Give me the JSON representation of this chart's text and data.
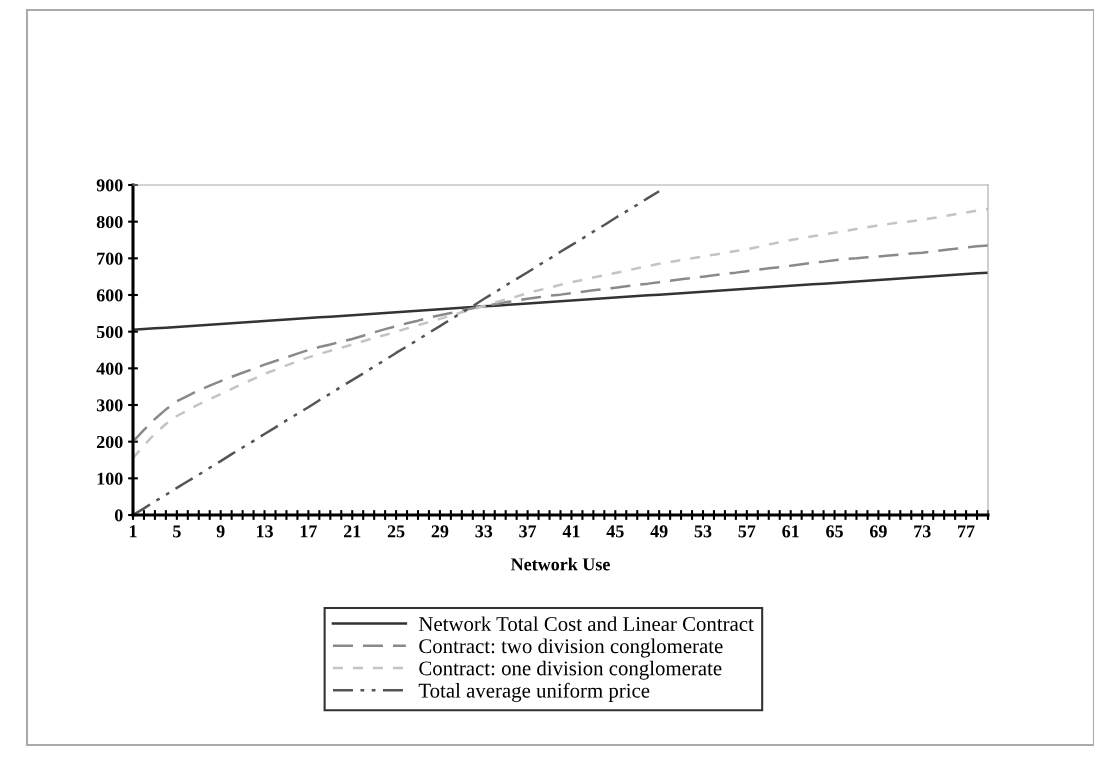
{
  "chart_data": {
    "type": "line",
    "xlabel": "Network Use",
    "categories": [
      "1",
      null,
      null,
      null,
      "5",
      null,
      null,
      null,
      "9",
      null,
      null,
      null,
      "13",
      null,
      null,
      null,
      "17",
      null,
      null,
      null,
      "21",
      null,
      null,
      null,
      "25",
      null,
      null,
      null,
      "29",
      null,
      null,
      null,
      "33",
      null,
      null,
      null,
      "37",
      null,
      null,
      null,
      "41",
      null,
      null,
      null,
      "45",
      null,
      null,
      null,
      "49",
      null,
      null,
      null,
      "53",
      null,
      null,
      null,
      "57",
      null,
      null,
      null,
      "61",
      null,
      null,
      null,
      "65",
      null,
      null,
      null,
      "69",
      null,
      null,
      null,
      "73",
      null,
      null,
      null,
      "77",
      null,
      null
    ],
    "ylim": [
      0,
      900
    ],
    "yticks": [
      0,
      100,
      200,
      300,
      400,
      500,
      600,
      700,
      800,
      900
    ],
    "grid": false,
    "legend": "bottom",
    "marker": "none",
    "series": [
      {
        "name": "Network Total Cost and Linear Contract",
        "color": "#333333",
        "line_style": "solid",
        "values": [
          505,
          507,
          509,
          511,
          513,
          515,
          517,
          519,
          521,
          523,
          525,
          527,
          529,
          531,
          533,
          535,
          537,
          539,
          541,
          543,
          545,
          547,
          549,
          551,
          553,
          555,
          557,
          559,
          561,
          563,
          565,
          567,
          569,
          571,
          573,
          575,
          577,
          579,
          581,
          583,
          585,
          587,
          589,
          591,
          593,
          595,
          597,
          599,
          601,
          603,
          605,
          607,
          609,
          611,
          613,
          615,
          617,
          619,
          621,
          623,
          625,
          627,
          629,
          631,
          633,
          635,
          637,
          639,
          641,
          643,
          645,
          647,
          649,
          651,
          653,
          655,
          657,
          659,
          661
        ]
      },
      {
        "name": "Contract: two division conglomerate",
        "color": "#8a8a8a",
        "line_style": "dashed",
        "values": [
          200,
          232,
          262,
          288,
          310,
          325,
          340,
          353,
          365,
          377,
          388,
          399,
          410,
          420,
          430,
          440,
          450,
          458,
          465,
          473,
          480,
          489,
          498,
          507,
          515,
          523,
          530,
          538,
          545,
          551,
          558,
          564,
          570,
          575,
          580,
          585,
          590,
          594,
          598,
          601,
          605,
          609,
          613,
          616,
          620,
          624,
          628,
          631,
          635,
          639,
          643,
          646,
          650,
          654,
          658,
          661,
          665,
          669,
          673,
          676,
          680,
          684,
          688,
          691,
          695,
          698,
          700,
          703,
          705,
          708,
          710,
          713,
          715,
          719,
          723,
          726,
          730,
          733,
          735
        ]
      },
      {
        "name": "Contract: one division conglomerate",
        "color": "#c4c4c4",
        "line_style": "dotted",
        "values": [
          155,
          190,
          222,
          248,
          270,
          286,
          302,
          316,
          330,
          344,
          358,
          371,
          385,
          396,
          408,
          419,
          430,
          439,
          448,
          456,
          465,
          474,
          483,
          491,
          500,
          509,
          518,
          526,
          535,
          544,
          553,
          561,
          570,
          579,
          588,
          596,
          605,
          613,
          620,
          628,
          635,
          641,
          648,
          654,
          660,
          666,
          673,
          679,
          685,
          690,
          695,
          700,
          705,
          710,
          715,
          720,
          725,
          731,
          738,
          744,
          750,
          755,
          760,
          765,
          770,
          775,
          780,
          785,
          790,
          794,
          798,
          801,
          805,
          810,
          815,
          820,
          825,
          830,
          835
        ]
      },
      {
        "name": "Total average uniform price",
        "color": "#555555",
        "line_style": "dashdotdot",
        "values": [
          0,
          18,
          37,
          55,
          74,
          92,
          110,
          129,
          147,
          166,
          184,
          202,
          221,
          239,
          258,
          276,
          294,
          313,
          331,
          350,
          368,
          386,
          405,
          423,
          442,
          460,
          478,
          497,
          515,
          534,
          552,
          570,
          589,
          607,
          626,
          644,
          662,
          681,
          699,
          718,
          736,
          754,
          773,
          791,
          810,
          828,
          846,
          865,
          883,
          null,
          null,
          null,
          null,
          null,
          null,
          null,
          null,
          null,
          null,
          null,
          null,
          null,
          null,
          null,
          null,
          null,
          null,
          null,
          null,
          null,
          null,
          null,
          null,
          null,
          null,
          null,
          null,
          null,
          null
        ]
      }
    ]
  }
}
